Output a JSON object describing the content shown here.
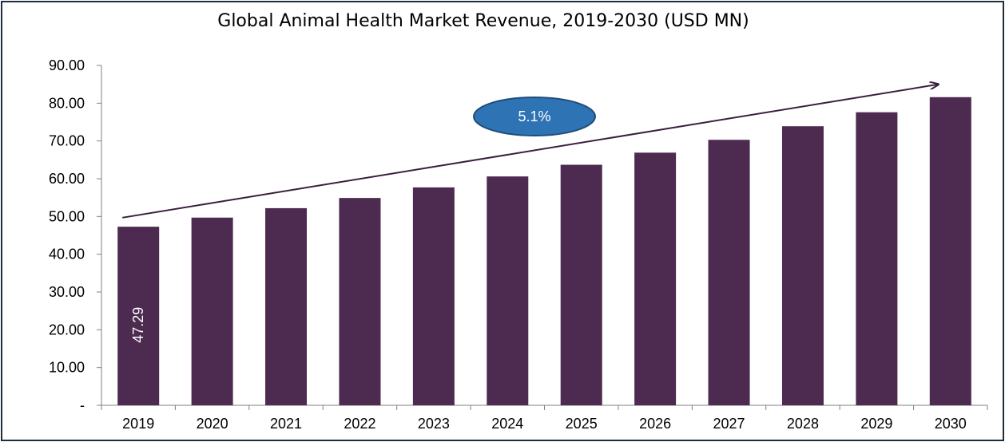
{
  "chart_data": {
    "type": "bar",
    "title": "Global Animal Health Market Revenue, 2019-2030 (USD MN)",
    "categories": [
      "2019",
      "2020",
      "2021",
      "2022",
      "2023",
      "2024",
      "2025",
      "2026",
      "2027",
      "2028",
      "2029",
      "2030"
    ],
    "values": [
      47.29,
      49.7,
      52.2,
      54.9,
      57.7,
      60.6,
      63.7,
      66.9,
      70.3,
      73.9,
      77.6,
      81.6
    ],
    "ylim": [
      0,
      90
    ],
    "yticks": [
      "-",
      "10.00",
      "20.00",
      "30.00",
      "40.00",
      "50.00",
      "60.00",
      "70.00",
      "80.00",
      "90.00"
    ],
    "bar_color": "#4d2a50",
    "data_labels": [
      {
        "index": 0,
        "text": "47.29"
      }
    ],
    "annotation": {
      "text": "5.1%",
      "fill": "#2e74b5",
      "border": "#1f4e79",
      "text_color": "#ffffff"
    },
    "trend_color": "#3b1f3d",
    "grid": false,
    "legend": "none"
  }
}
